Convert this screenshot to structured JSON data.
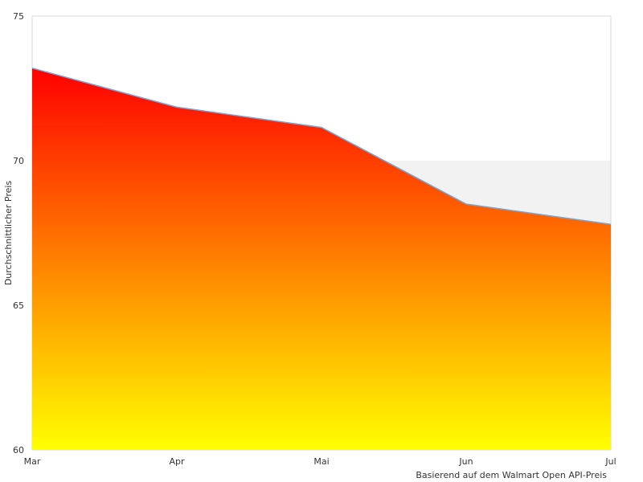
{
  "chart_data": {
    "type": "area",
    "title": "",
    "xlabel": "",
    "ylabel": "Durchschnittlicher Preis",
    "categories": [
      "Mar",
      "Apr",
      "Mai",
      "Jun",
      "Jul"
    ],
    "series": [
      {
        "values": [
          73.2,
          71.85,
          71.15,
          68.5,
          67.8
        ],
        "line_color": "#6fa8dc",
        "fill_gradient": [
          "#ff0000",
          "#ffff00"
        ]
      }
    ],
    "ylim": [
      60,
      75
    ],
    "yticks": [
      60,
      65,
      70,
      75
    ],
    "grid": false,
    "plot_bands": [
      {
        "from": 60,
        "to": 70,
        "color": "#f2f2f2"
      }
    ],
    "source_note": "Basierend auf dem Walmart Open API-Preis"
  }
}
